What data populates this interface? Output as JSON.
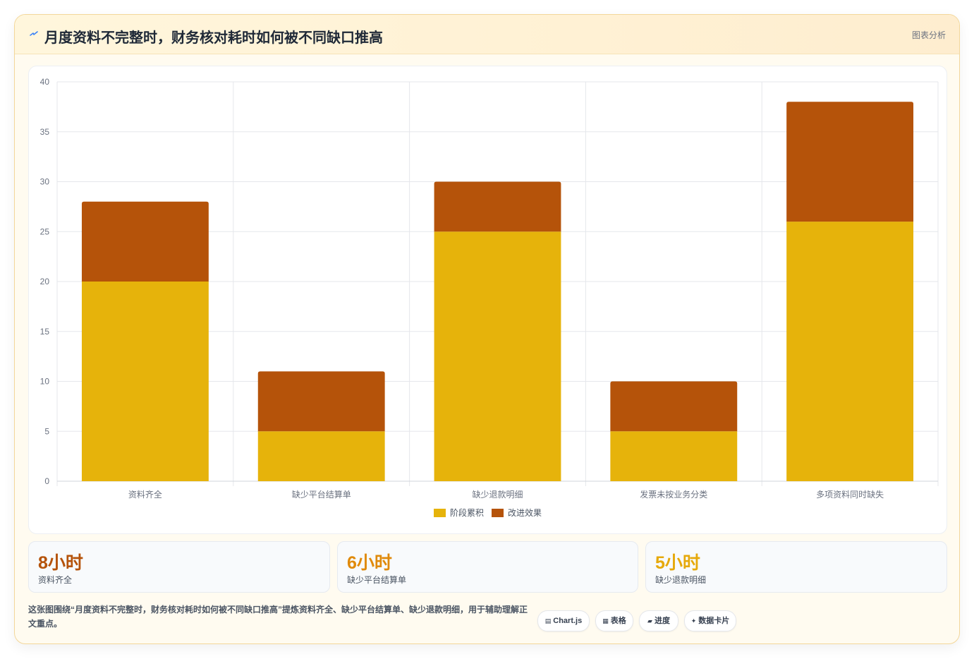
{
  "header": {
    "icon": "bolt-icon",
    "title": "月度资料不完整时，财务核对耗时如何被不同缺口推高",
    "tag": "图表分析"
  },
  "chart_data": {
    "type": "bar",
    "stacked": true,
    "categories": [
      "资料齐全",
      "缺少平台结算单",
      "缺少退款明细",
      "发票未按业务分类",
      "多项资料同时缺失"
    ],
    "series": [
      {
        "name": "阶段累积",
        "values": [
          20,
          5,
          25,
          5,
          26
        ],
        "color": "#e6b30b"
      },
      {
        "name": "改进效果",
        "values": [
          8,
          6,
          5,
          5,
          12
        ],
        "color": "#b5530a"
      }
    ],
    "ylim": [
      0,
      40
    ],
    "yticks": [
      0,
      5,
      10,
      15,
      20,
      25,
      30,
      35,
      40
    ],
    "grid": true,
    "legend": "bottom"
  },
  "stats": [
    {
      "value": "8小时",
      "label": "资料齐全",
      "color": "#b5530a"
    },
    {
      "value": "6小时",
      "label": "缺少平台结算单",
      "color": "#e08a0b"
    },
    {
      "value": "5小时",
      "label": "缺少退款明细",
      "color": "#e6a90b"
    }
  ],
  "caption": "这张图围绕“月度资料不完整时，财务核对耗时如何被不同缺口推高”提炼资料齐全、缺少平台结算单、缺少退款明细，用于辅助理解正文重点。",
  "chips": [
    {
      "icon": "▤",
      "label": "Chart.js"
    },
    {
      "icon": "▦",
      "label": "表格"
    },
    {
      "icon": "▰",
      "label": "进度"
    },
    {
      "icon": "✦",
      "label": "数据卡片"
    }
  ]
}
